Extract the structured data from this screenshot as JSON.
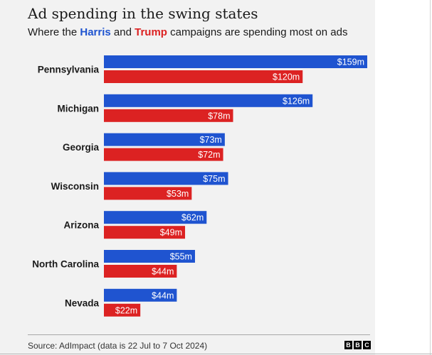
{
  "header": {
    "title": "Ad spending in the swing states",
    "subtitle_prefix": "Where the",
    "subtitle_harris": "Harris",
    "subtitle_and": "and",
    "subtitle_trump": "Trump",
    "subtitle_suffix": "campaigns are spending most on ads"
  },
  "colors": {
    "harris": "#1f54d0",
    "trump": "#dc2222",
    "background": "#f2f2f2"
  },
  "chart_data": {
    "type": "bar",
    "orientation": "horizontal",
    "title": "Ad spending in the swing states",
    "subtitle": "Where the Harris and Trump campaigns are spending most on ads",
    "categories": [
      "Pennsylvania",
      "Michigan",
      "Georgia",
      "Wisconsin",
      "Arizona",
      "North Carolina",
      "Nevada"
    ],
    "series": [
      {
        "name": "Harris",
        "values": [
          159,
          126,
          73,
          75,
          62,
          55,
          44
        ],
        "labels": [
          "$159m",
          "$126m",
          "$73m",
          "$75m",
          "$62m",
          "$55m",
          "$44m"
        ]
      },
      {
        "name": "Trump",
        "values": [
          120,
          78,
          72,
          53,
          49,
          44,
          22
        ],
        "labels": [
          "$120m",
          "$78m",
          "$72m",
          "$53m",
          "$49m",
          "$44m",
          "$22m"
        ]
      }
    ],
    "unit": "$m",
    "xlim": [
      0,
      159
    ],
    "grid": false,
    "legend": "inline in subtitle"
  },
  "footer": {
    "source": "Source: AdImpact (data is 22 Jul to 7 Oct 2024)",
    "logo_letters": [
      "B",
      "B",
      "C"
    ]
  }
}
